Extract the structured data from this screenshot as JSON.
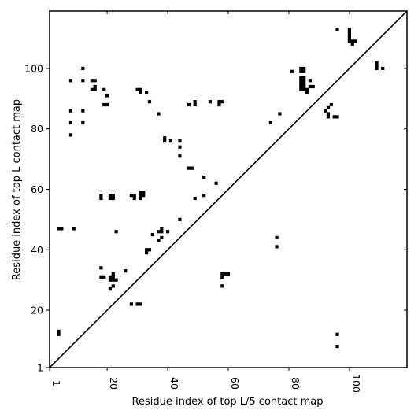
{
  "chart_data": {
    "type": "scatter",
    "title": "",
    "xlabel": "Residue index of top L/5 contact map",
    "ylabel": "Residue index of top L contact map",
    "xlim": [
      1,
      119
    ],
    "ylim": [
      1,
      119
    ],
    "xticks": [
      1,
      20,
      40,
      60,
      80,
      100
    ],
    "yticks": [
      1,
      20,
      40,
      60,
      80,
      100
    ],
    "xtick_labels": [
      "1",
      "20",
      "40",
      "60",
      "80",
      "100"
    ],
    "ytick_labels": [
      "1",
      "20",
      "40",
      "60",
      "80",
      "100"
    ],
    "diagonal": {
      "from": [
        1,
        1
      ],
      "to": [
        119,
        119
      ]
    },
    "grid": false,
    "marker_color": "#000000",
    "series": [
      {
        "region": "upper-left (top L contacts)",
        "points": [
          [
            4,
            47
          ],
          [
            5,
            47
          ],
          [
            9,
            47
          ],
          [
            8,
            96
          ],
          [
            8,
            86
          ],
          [
            8,
            82
          ],
          [
            8,
            78
          ],
          [
            12,
            100
          ],
          [
            12,
            96
          ],
          [
            12,
            86
          ],
          [
            12,
            82
          ],
          [
            15,
            96
          ],
          [
            16,
            96
          ],
          [
            15,
            93
          ],
          [
            16,
            93
          ],
          [
            16,
            94
          ],
          [
            19,
            93
          ],
          [
            19,
            88
          ],
          [
            20,
            88
          ],
          [
            20,
            91
          ],
          [
            18,
            58
          ],
          [
            18,
            57
          ],
          [
            21,
            58
          ],
          [
            22,
            58
          ],
          [
            21,
            57
          ],
          [
            22,
            57
          ],
          [
            18,
            34
          ],
          [
            18,
            31
          ],
          [
            19,
            31
          ],
          [
            21,
            31
          ],
          [
            22,
            31
          ],
          [
            22,
            32
          ],
          [
            21,
            30
          ],
          [
            22,
            30
          ],
          [
            23,
            30
          ],
          [
            21,
            27
          ],
          [
            22,
            28
          ],
          [
            23,
            46
          ],
          [
            26,
            33
          ],
          [
            28,
            58
          ],
          [
            29,
            58
          ],
          [
            29,
            57
          ],
          [
            30,
            93
          ],
          [
            31,
            93
          ],
          [
            31,
            92
          ],
          [
            33,
            92
          ],
          [
            34,
            89
          ],
          [
            31,
            59
          ],
          [
            31,
            58
          ],
          [
            31,
            57
          ],
          [
            32,
            58
          ],
          [
            32,
            59
          ],
          [
            28,
            22
          ],
          [
            30,
            22
          ],
          [
            31,
            22
          ],
          [
            33,
            40
          ],
          [
            33,
            39
          ],
          [
            34,
            40
          ],
          [
            35,
            45
          ],
          [
            37,
            85
          ],
          [
            37,
            43
          ],
          [
            37,
            46
          ],
          [
            38,
            46
          ],
          [
            38,
            47
          ],
          [
            38,
            44
          ],
          [
            39,
            77
          ],
          [
            39,
            76
          ],
          [
            40,
            46
          ],
          [
            41,
            76
          ],
          [
            44,
            76
          ],
          [
            44,
            74
          ],
          [
            44,
            71
          ],
          [
            44,
            50
          ],
          [
            47,
            88
          ],
          [
            49,
            89
          ],
          [
            49,
            88
          ],
          [
            47,
            67
          ],
          [
            48,
            67
          ],
          [
            49,
            57
          ],
          [
            52,
            64
          ],
          [
            52,
            58
          ],
          [
            54,
            89
          ],
          [
            56,
            62
          ],
          [
            57,
            89
          ],
          [
            57,
            88
          ],
          [
            58,
            89
          ],
          [
            58,
            32
          ],
          [
            58,
            31
          ],
          [
            59,
            32
          ],
          [
            60,
            32
          ],
          [
            58,
            28
          ],
          [
            74,
            82
          ],
          [
            77,
            85
          ],
          [
            81,
            99
          ],
          [
            84,
            100
          ],
          [
            85,
            100
          ],
          [
            84,
            99
          ],
          [
            85,
            99
          ],
          [
            84,
            97
          ],
          [
            85,
            97
          ],
          [
            84,
            96
          ],
          [
            85,
            96
          ],
          [
            84,
            95
          ],
          [
            85,
            95
          ],
          [
            84,
            94
          ],
          [
            85,
            94
          ],
          [
            84,
            93
          ],
          [
            85,
            93
          ],
          [
            86,
            93
          ],
          [
            86,
            92
          ],
          [
            87,
            96
          ],
          [
            87,
            94
          ],
          [
            88,
            94
          ],
          [
            92,
            86
          ],
          [
            93,
            87
          ],
          [
            94,
            88
          ],
          [
            93,
            85
          ],
          [
            93,
            84
          ],
          [
            95,
            84
          ],
          [
            96,
            84
          ],
          [
            96,
            113
          ],
          [
            100,
            113
          ],
          [
            100,
            112
          ],
          [
            100,
            111
          ],
          [
            100,
            110
          ],
          [
            100,
            109
          ],
          [
            101,
            109
          ],
          [
            102,
            109
          ],
          [
            101,
            108
          ],
          [
            109,
            102
          ],
          [
            109,
            101
          ],
          [
            109,
            100
          ],
          [
            111,
            100
          ]
        ]
      },
      {
        "region": "lower-right (top L/5 contacts)",
        "points": [
          [
            4,
            13
          ],
          [
            4,
            12
          ],
          [
            76,
            44
          ],
          [
            76,
            41
          ],
          [
            96,
            12
          ],
          [
            96,
            8
          ]
        ]
      }
    ]
  }
}
